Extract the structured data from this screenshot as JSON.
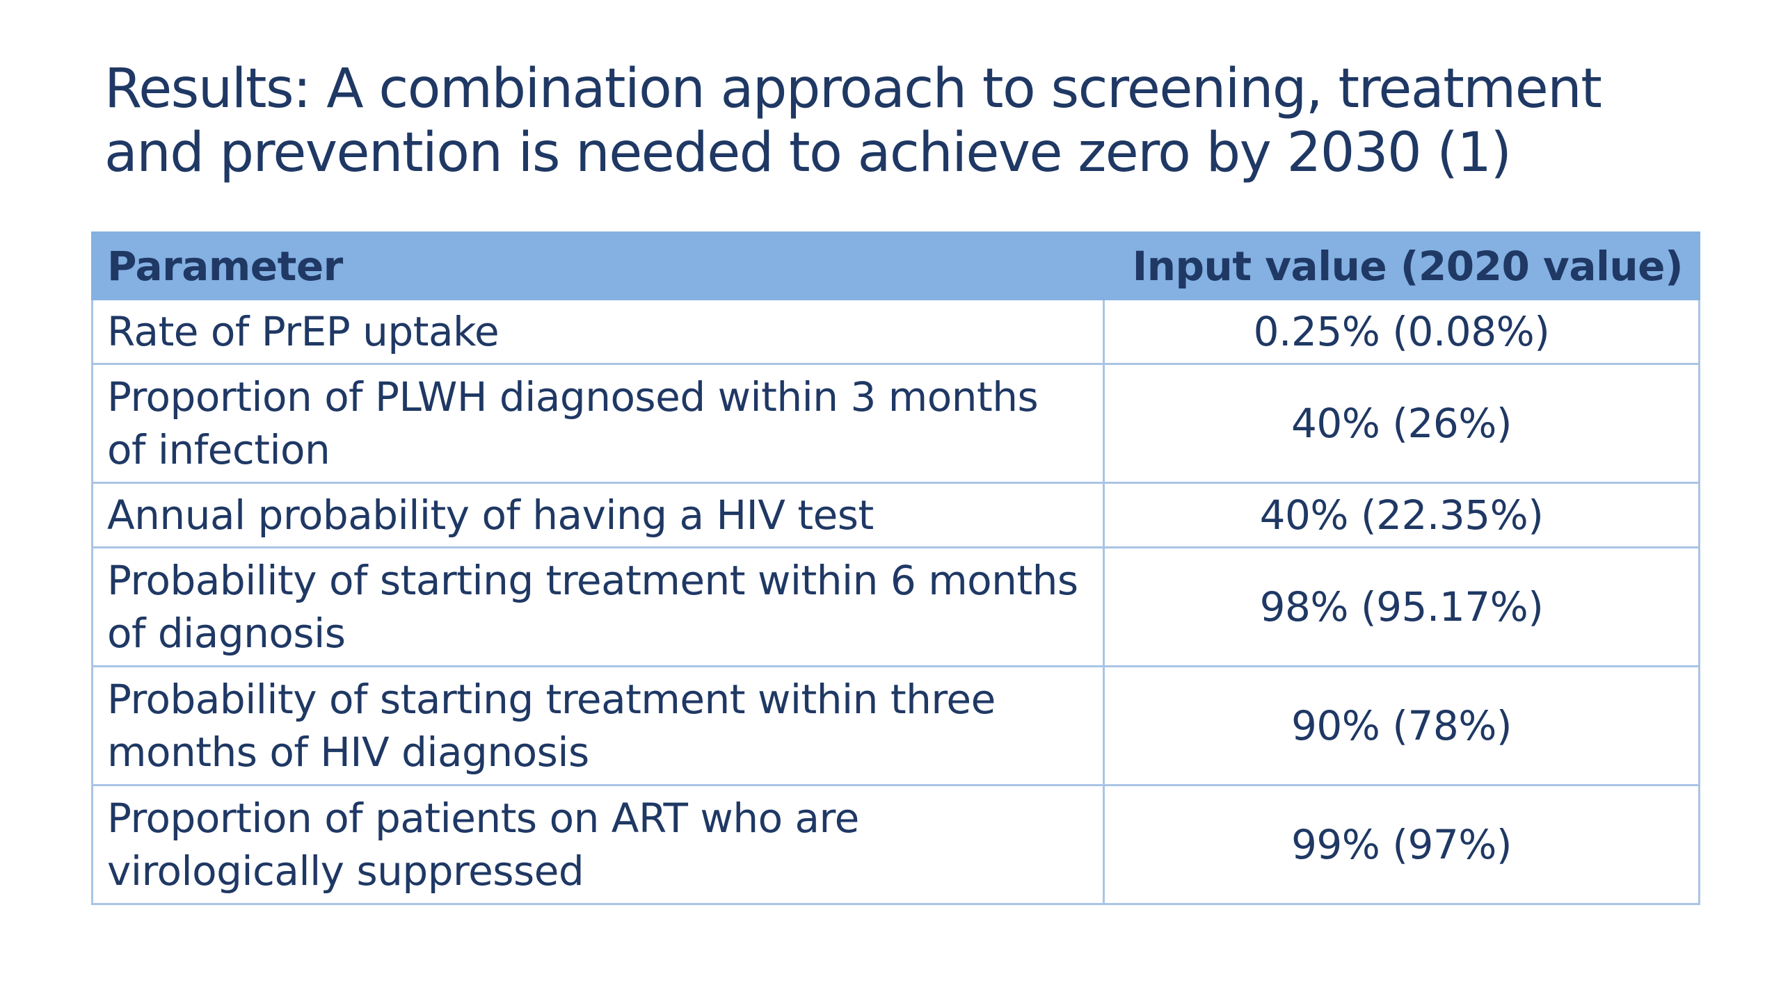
{
  "title": {
    "line1": "Results: A combination approach to screening, treatment",
    "line2": "and prevention is needed to achieve zero by 2030 (1)"
  },
  "table": {
    "headers": [
      "Parameter",
      "Input value (2020 value)"
    ],
    "rows": [
      {
        "parameter": "Rate of PrEP uptake",
        "value": "0.25% (0.08%)"
      },
      {
        "parameter": "Proportion of PLWH diagnosed within 3 months of infection",
        "value": "40% (26%)"
      },
      {
        "parameter": "Annual probability of having a HIV test",
        "value": "40% (22.35%)"
      },
      {
        "parameter": "Probability of starting treatment within 6 months of diagnosis",
        "value": "98% (95.17%)"
      },
      {
        "parameter": "Probability of starting treatment within three months of HIV diagnosis",
        "value": "90% (78%)"
      },
      {
        "parameter": "Proportion of patients on ART who are virologically suppressed",
        "value": "99% (97%)"
      }
    ]
  },
  "colors": {
    "text": "#1f3864",
    "header_background": "#84b0e2",
    "border": "#a9c4e6"
  }
}
